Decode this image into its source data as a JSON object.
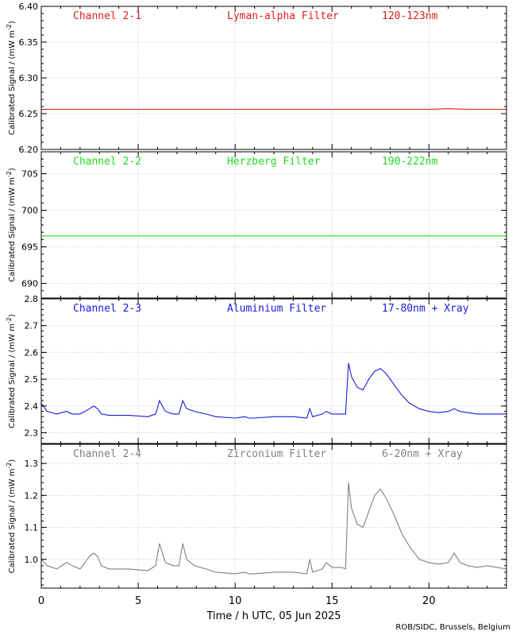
{
  "figure": {
    "xlabel": "Time / h UTC, 05 Jun 2025",
    "credit": "ROB/SIDC, Brussels, Belgium",
    "xticks": [
      "0",
      "5",
      "10",
      "15",
      "20"
    ],
    "ylabel_prefix": "Calibrated Signal / (mW m",
    "ylabel_exp": "-2",
    "ylabel_suffix": ")"
  },
  "chart_data": [
    {
      "type": "line",
      "channel": "Channel 2-1",
      "filter": "Lyman-alpha Filter",
      "band": "120-123nm",
      "color": "#e02020",
      "xlim": [
        0,
        24
      ],
      "ylim": [
        6.2,
        6.4
      ],
      "yticks": [
        "6.20",
        "6.25",
        "6.30",
        "6.35",
        "6.40"
      ],
      "yticks_values": [
        6.2,
        6.25,
        6.3,
        6.35,
        6.4
      ],
      "grid": true,
      "x": [
        0,
        1,
        2,
        3,
        4,
        5,
        6,
        7,
        8,
        9,
        10,
        11,
        12,
        13,
        14,
        15,
        16,
        17,
        18,
        19,
        20,
        21,
        22,
        23,
        24
      ],
      "y": [
        6.256,
        6.256,
        6.256,
        6.256,
        6.256,
        6.256,
        6.256,
        6.256,
        6.256,
        6.256,
        6.256,
        6.256,
        6.256,
        6.256,
        6.256,
        6.256,
        6.256,
        6.256,
        6.256,
        6.256,
        6.256,
        6.257,
        6.256,
        6.256,
        6.256
      ]
    },
    {
      "type": "line",
      "channel": "Channel 2-2",
      "filter": "Herzberg Filter",
      "band": "190-222nm",
      "color": "#22dd22",
      "xlim": [
        0,
        24
      ],
      "ylim": [
        688,
        708
      ],
      "yticks": [
        "690",
        "695",
        "700",
        "705"
      ],
      "yticks_values": [
        690,
        695,
        700,
        705
      ],
      "grid": true,
      "x": [
        0,
        24
      ],
      "y": [
        696.5,
        696.5
      ]
    },
    {
      "type": "line",
      "channel": "Channel 2-3",
      "filter": "Aluminium Filter",
      "band": "17-80nm + Xray",
      "color": "#1a1adc",
      "xlim": [
        0,
        24
      ],
      "ylim": [
        2.26,
        2.8
      ],
      "yticks": [
        "2.3",
        "2.4",
        "2.5",
        "2.6",
        "2.7",
        "2.8"
      ],
      "yticks_values": [
        2.3,
        2.4,
        2.5,
        2.6,
        2.7,
        2.8
      ],
      "grid": true,
      "x": [
        0,
        0.3,
        0.8,
        1.3,
        1.6,
        2.0,
        2.5,
        2.7,
        2.9,
        3.1,
        3.5,
        4.5,
        5.5,
        5.9,
        6.1,
        6.4,
        6.8,
        7.1,
        7.3,
        7.5,
        7.9,
        8.5,
        9.0,
        10.0,
        10.5,
        10.7,
        11.0,
        12.0,
        13.0,
        13.7,
        13.85,
        14.0,
        14.5,
        14.7,
        15.0,
        15.5,
        15.7,
        15.85,
        16.0,
        16.3,
        16.6,
        16.9,
        17.2,
        17.5,
        17.8,
        18.2,
        18.6,
        19.0,
        19.5,
        20.0,
        20.5,
        21.0,
        21.3,
        21.6,
        22.0,
        22.5,
        23.0,
        23.5,
        24.0
      ],
      "y": [
        2.41,
        2.38,
        2.37,
        2.38,
        2.37,
        2.37,
        2.39,
        2.4,
        2.39,
        2.37,
        2.365,
        2.365,
        2.36,
        2.37,
        2.42,
        2.38,
        2.37,
        2.37,
        2.42,
        2.39,
        2.38,
        2.37,
        2.36,
        2.355,
        2.36,
        2.355,
        2.355,
        2.36,
        2.36,
        2.355,
        2.39,
        2.36,
        2.37,
        2.38,
        2.37,
        2.37,
        2.37,
        2.56,
        2.51,
        2.47,
        2.46,
        2.5,
        2.53,
        2.54,
        2.52,
        2.48,
        2.44,
        2.41,
        2.39,
        2.38,
        2.375,
        2.38,
        2.39,
        2.38,
        2.375,
        2.37,
        2.37,
        2.37,
        2.37
      ]
    },
    {
      "type": "line",
      "channel": "Channel 2-4",
      "filter": "Zirconium Filter",
      "band": "6-20nm + Xray",
      "color": "#808080",
      "xlim": [
        0,
        24
      ],
      "ylim": [
        0.91,
        1.36
      ],
      "yticks": [
        "1.0",
        "1.1",
        "1.2",
        "1.3"
      ],
      "yticks_values": [
        1.0,
        1.1,
        1.2,
        1.3
      ],
      "grid": true,
      "x": [
        0,
        0.3,
        0.8,
        1.3,
        1.6,
        2.0,
        2.5,
        2.7,
        2.9,
        3.1,
        3.5,
        4.5,
        5.5,
        5.9,
        6.1,
        6.4,
        6.8,
        7.1,
        7.3,
        7.5,
        7.9,
        8.5,
        9.0,
        10.0,
        10.5,
        10.7,
        11.0,
        12.0,
        13.0,
        13.7,
        13.85,
        14.0,
        14.5,
        14.7,
        15.0,
        15.5,
        15.7,
        15.85,
        16.0,
        16.3,
        16.6,
        16.9,
        17.2,
        17.5,
        17.8,
        18.2,
        18.6,
        19.0,
        19.5,
        20.0,
        20.5,
        21.0,
        21.3,
        21.6,
        22.0,
        22.5,
        23.0,
        23.5,
        24.0
      ],
      "y": [
        1.0,
        0.98,
        0.97,
        0.99,
        0.98,
        0.97,
        1.01,
        1.02,
        1.01,
        0.98,
        0.97,
        0.97,
        0.965,
        0.98,
        1.05,
        0.99,
        0.98,
        0.98,
        1.05,
        1.0,
        0.98,
        0.97,
        0.96,
        0.955,
        0.96,
        0.955,
        0.955,
        0.96,
        0.96,
        0.955,
        1.0,
        0.96,
        0.97,
        0.99,
        0.975,
        0.975,
        0.97,
        1.24,
        1.16,
        1.11,
        1.1,
        1.15,
        1.2,
        1.22,
        1.19,
        1.14,
        1.08,
        1.04,
        1.0,
        0.99,
        0.985,
        0.99,
        1.02,
        0.99,
        0.98,
        0.975,
        0.98,
        0.975,
        0.97
      ]
    }
  ]
}
